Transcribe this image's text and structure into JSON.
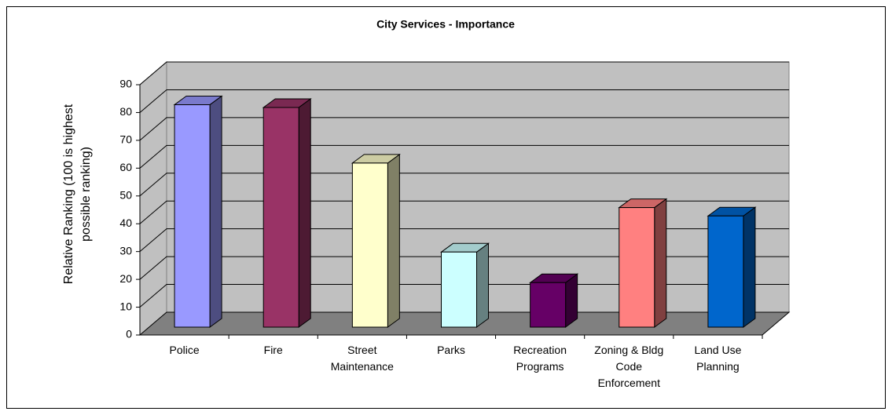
{
  "chart_data": {
    "type": "bar3d",
    "title": "City Services - Importance",
    "ylabel": [
      "Relative Ranking (100 is highest",
      "possible ranking)"
    ],
    "categories": [
      "Police",
      "Fire",
      "Street Maintenance",
      "Parks",
      "Recreation Programs",
      "Zoning & Bldg Code Enforcement",
      "Land Use Planning"
    ],
    "values": [
      80,
      79,
      59,
      27,
      16,
      43,
      40
    ],
    "colors": [
      "#9999ff",
      "#993366",
      "#ffffcc",
      "#ccffff",
      "#660066",
      "#ff8080",
      "#0066cc"
    ],
    "ylim": [
      0,
      90
    ],
    "yticks": [
      0,
      10,
      20,
      30,
      40,
      50,
      60,
      70,
      80,
      90
    ],
    "grid": true
  }
}
